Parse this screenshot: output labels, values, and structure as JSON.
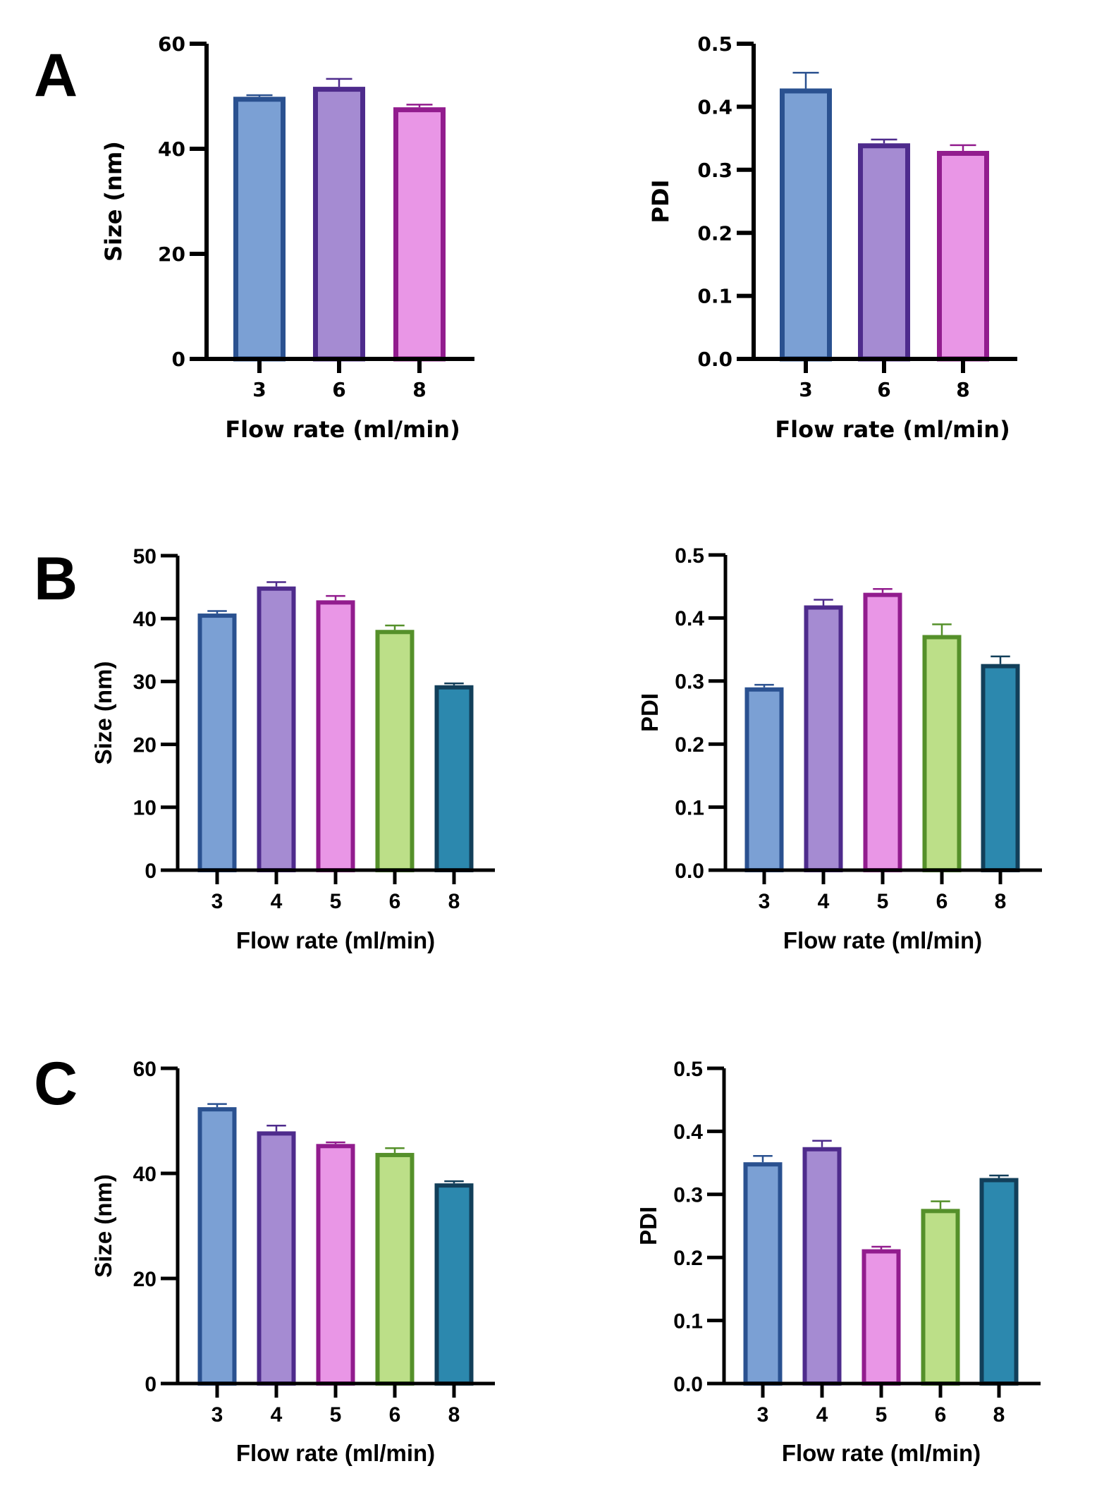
{
  "panels": [
    {
      "letter": "A"
    },
    {
      "letter": "B"
    },
    {
      "letter": "C"
    }
  ],
  "chart_data": [
    {
      "id": "A-size",
      "panel": "A",
      "type": "bar",
      "title": "",
      "xlabel": "Flow rate (ml/min)",
      "ylabel": "Size (nm)",
      "categories": [
        "3",
        "6",
        "8"
      ],
      "values": [
        49.9,
        51.8,
        47.9
      ],
      "errors": [
        0.3,
        1.5,
        0.5
      ],
      "ylim": [
        0,
        60
      ],
      "yticks": [
        0,
        20,
        40,
        60
      ],
      "ytick_labels": [
        "0",
        "20",
        "40",
        "60"
      ],
      "fill_colors": [
        "#7ba0d4",
        "#a58bd2",
        "#e996e6"
      ],
      "edge_colors": [
        "#2a5190",
        "#4e2b8c",
        "#921c8e"
      ],
      "grid": false,
      "legend": "none"
    },
    {
      "id": "A-pdi",
      "panel": "A",
      "type": "bar",
      "title": "",
      "xlabel": "Flow rate (ml/min)",
      "ylabel": "PDI",
      "categories": [
        "3",
        "6",
        "8"
      ],
      "values": [
        0.429,
        0.342,
        0.33
      ],
      "errors": [
        0.025,
        0.006,
        0.009
      ],
      "ylim": [
        0,
        0.5
      ],
      "yticks": [
        0,
        0.1,
        0.2,
        0.3,
        0.4,
        0.5
      ],
      "ytick_labels": [
        "0.0",
        "0.1",
        "0.2",
        "0.3",
        "0.4",
        "0.5"
      ],
      "fill_colors": [
        "#7ba0d4",
        "#a58bd2",
        "#e996e6"
      ],
      "edge_colors": [
        "#2a5190",
        "#4e2b8c",
        "#921c8e"
      ],
      "grid": false,
      "legend": "none"
    },
    {
      "id": "B-size",
      "panel": "B",
      "type": "bar",
      "title": "",
      "xlabel": "Flow rate (ml/min)",
      "ylabel": "Size (nm)",
      "categories": [
        "3",
        "4",
        "5",
        "6",
        "8"
      ],
      "values": [
        40.8,
        45.1,
        42.9,
        38.2,
        29.4
      ],
      "errors": [
        0.4,
        0.7,
        0.7,
        0.7,
        0.3
      ],
      "ylim": [
        0,
        50
      ],
      "yticks": [
        0,
        10,
        20,
        30,
        40,
        50
      ],
      "ytick_labels": [
        "0",
        "10",
        "20",
        "30",
        "40",
        "50"
      ],
      "fill_colors": [
        "#7ba0d4",
        "#a58bd2",
        "#e996e6",
        "#bcdf88",
        "#2c88ae"
      ],
      "edge_colors": [
        "#2a5190",
        "#4e2b8c",
        "#921c8e",
        "#55902a",
        "#123f5a"
      ],
      "grid": false,
      "legend": "none"
    },
    {
      "id": "B-pdi",
      "panel": "B",
      "type": "bar",
      "title": "",
      "xlabel": "Flow rate (ml/min)",
      "ylabel": "PDI",
      "categories": [
        "3",
        "4",
        "5",
        "6",
        "8"
      ],
      "values": [
        0.29,
        0.42,
        0.44,
        0.373,
        0.327
      ],
      "errors": [
        0.004,
        0.009,
        0.006,
        0.017,
        0.012
      ],
      "ylim": [
        0,
        0.5
      ],
      "yticks": [
        0,
        0.1,
        0.2,
        0.3,
        0.4,
        0.5
      ],
      "ytick_labels": [
        "0.0",
        "0.1",
        "0.2",
        "0.3",
        "0.4",
        "0.5"
      ],
      "fill_colors": [
        "#7ba0d4",
        "#a58bd2",
        "#e996e6",
        "#bcdf88",
        "#2c88ae"
      ],
      "edge_colors": [
        "#2a5190",
        "#4e2b8c",
        "#921c8e",
        "#55902a",
        "#123f5a"
      ],
      "grid": false,
      "legend": "none"
    },
    {
      "id": "C-size",
      "panel": "C",
      "type": "bar",
      "title": "",
      "xlabel": "Flow rate (ml/min)",
      "ylabel": "Size (nm)",
      "categories": [
        "3",
        "4",
        "5",
        "6",
        "8"
      ],
      "values": [
        52.6,
        48.0,
        45.6,
        43.9,
        38.1
      ],
      "errors": [
        0.6,
        1.1,
        0.3,
        0.9,
        0.4
      ],
      "ylim": [
        0,
        60
      ],
      "yticks": [
        0,
        20,
        40,
        60
      ],
      "ytick_labels": [
        "0",
        "20",
        "40",
        "60"
      ],
      "fill_colors": [
        "#7ba0d4",
        "#a58bd2",
        "#e996e6",
        "#bcdf88",
        "#2c88ae"
      ],
      "edge_colors": [
        "#2a5190",
        "#4e2b8c",
        "#921c8e",
        "#55902a",
        "#123f5a"
      ],
      "grid": false,
      "legend": "none"
    },
    {
      "id": "C-pdi",
      "panel": "C",
      "type": "bar",
      "title": "",
      "xlabel": "Flow rate (ml/min)",
      "ylabel": "PDI",
      "categories": [
        "3",
        "4",
        "5",
        "6",
        "8"
      ],
      "values": [
        0.351,
        0.375,
        0.213,
        0.277,
        0.326
      ],
      "errors": [
        0.01,
        0.01,
        0.004,
        0.012,
        0.004
      ],
      "ylim": [
        0,
        0.5
      ],
      "yticks": [
        0,
        0.1,
        0.2,
        0.3,
        0.4,
        0.5
      ],
      "ytick_labels": [
        "0.0",
        "0.1",
        "0.2",
        "0.3",
        "0.4",
        "0.5"
      ],
      "fill_colors": [
        "#7ba0d4",
        "#a58bd2",
        "#e996e6",
        "#bcdf88",
        "#2c88ae"
      ],
      "edge_colors": [
        "#2a5190",
        "#4e2b8c",
        "#921c8e",
        "#55902a",
        "#123f5a"
      ],
      "grid": false,
      "legend": "none"
    }
  ]
}
